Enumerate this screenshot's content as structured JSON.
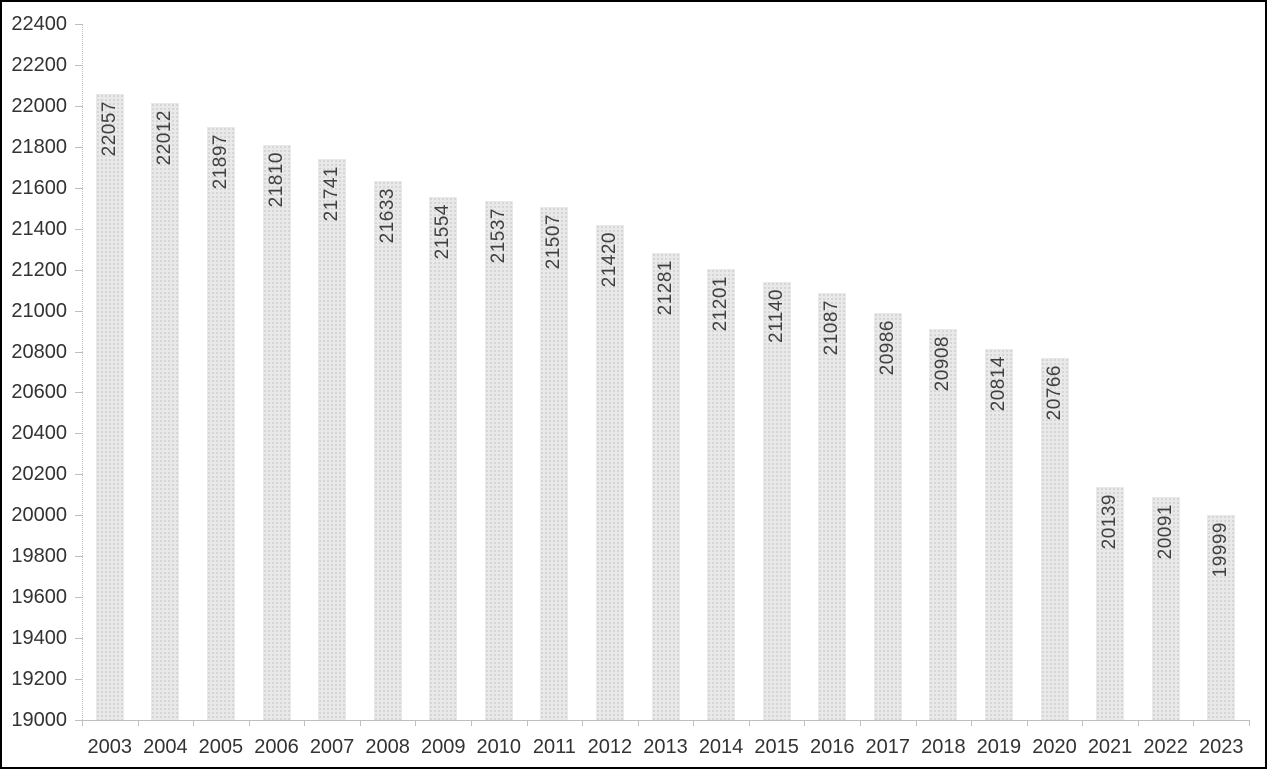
{
  "chart_data": {
    "type": "bar",
    "title": "",
    "xlabel": "",
    "ylabel": "",
    "categories": [
      "2003",
      "2004",
      "2005",
      "2006",
      "2007",
      "2008",
      "2009",
      "2010",
      "2011",
      "2012",
      "2013",
      "2014",
      "2015",
      "2016",
      "2017",
      "2018",
      "2019",
      "2020",
      "2021",
      "2022",
      "2023"
    ],
    "values": [
      22057,
      22012,
      21897,
      21810,
      21741,
      21633,
      21554,
      21537,
      21507,
      21420,
      21281,
      21201,
      21140,
      21087,
      20986,
      20908,
      20814,
      20766,
      20139,
      20091,
      19999
    ],
    "ylim": [
      19000,
      22400
    ],
    "y_tick_step": 200,
    "y_tick_labels": [
      "19000",
      "19200",
      "19400",
      "19600",
      "19800",
      "20000",
      "20200",
      "20400",
      "20600",
      "20800",
      "21000",
      "21200",
      "21400",
      "21600",
      "21800",
      "22000",
      "22200",
      "22400"
    ],
    "grid": false,
    "legend": false,
    "bar_labels": "rotated-90-inside-top",
    "colors": {
      "bar_fill": "#e9e9e9",
      "bar_pattern_dot": "#c4c4c4",
      "axis_line": "#bfbfbf",
      "axis_tick_label": "#333333",
      "bar_value_label": "#404040",
      "background": "#ffffff",
      "frame_border": "#000000"
    }
  }
}
